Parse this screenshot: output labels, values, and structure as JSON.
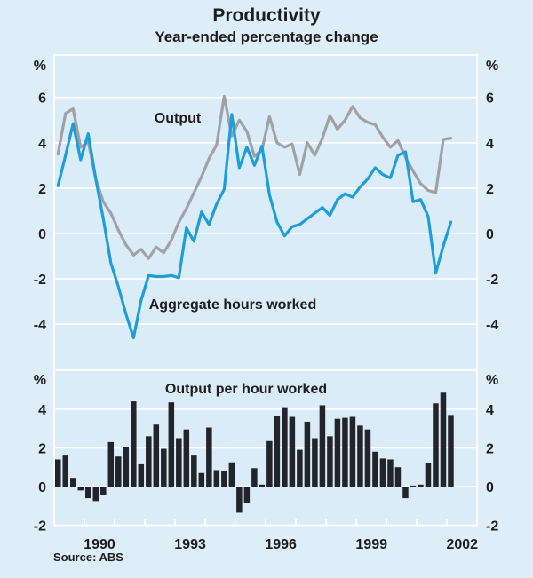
{
  "title": "Productivity",
  "subtitle": "Year-ended percentage change",
  "source_note": "Source: ABS",
  "colors": {
    "background": "#ddeef9",
    "panel_background": "#d9ecf8",
    "grid": "#ffffff",
    "text": "#1d1d1d",
    "output_line": "#9fa1a4",
    "hours_line": "#1e9ed9",
    "bar": "#21242a"
  },
  "x_axis": {
    "start_year": 1989,
    "end_year": 2003,
    "tick_years": [
      1990,
      1991,
      1992,
      1993,
      1994,
      1995,
      1996,
      1997,
      1998,
      1999,
      2000,
      2001,
      2002
    ],
    "label_years": [
      "1990",
      "1993",
      "1996",
      "1999",
      "2002"
    ],
    "frequency": "quarterly",
    "first_quarter": "1989Q1",
    "last_quarter": "2002Q1"
  },
  "chart_data": [
    {
      "type": "line",
      "panel": "top",
      "unit": "%",
      "yticks": [
        6,
        4,
        2,
        0,
        -2,
        -4
      ],
      "ylim": [
        -6,
        7.9
      ],
      "grid": true,
      "series": [
        {
          "name": "Output",
          "color_key": "output_line",
          "values": [
            3.5,
            5.3,
            5.5,
            3.8,
            4.05,
            2.4,
            1.4,
            0.9,
            0.15,
            -0.5,
            -0.95,
            -0.7,
            -1.1,
            -0.6,
            -0.85,
            -0.3,
            0.5,
            1.1,
            1.8,
            2.5,
            3.3,
            3.9,
            6.05,
            4.3,
            5.0,
            4.5,
            3.4,
            3.7,
            5.15,
            4.0,
            3.8,
            3.95,
            2.6,
            4.0,
            3.45,
            4.2,
            5.2,
            4.6,
            5.0,
            5.6,
            5.1,
            4.9,
            4.8,
            4.25,
            3.8,
            4.1,
            3.35,
            2.75,
            2.2,
            1.9,
            1.8,
            4.15,
            4.2
          ]
        },
        {
          "name": "Aggregate hours worked",
          "color_key": "hours_line",
          "values": [
            2.1,
            3.45,
            4.85,
            3.25,
            4.4,
            2.4,
            0.65,
            -1.3,
            -2.35,
            -3.55,
            -4.6,
            -2.95,
            -1.85,
            -1.9,
            -1.9,
            -1.85,
            -1.95,
            0.25,
            -0.35,
            0.95,
            0.4,
            1.3,
            1.95,
            5.25,
            2.9,
            3.8,
            3.0,
            3.85,
            1.7,
            0.5,
            -0.1,
            0.3,
            0.4,
            0.65,
            0.9,
            1.15,
            0.8,
            1.5,
            1.75,
            1.6,
            2.05,
            2.4,
            2.9,
            2.6,
            2.45,
            3.45,
            3.6,
            1.4,
            1.5,
            0.75,
            -1.75,
            -0.55,
            0.5
          ]
        }
      ]
    },
    {
      "type": "bar",
      "panel": "bottom",
      "unit": "%",
      "yticks": [
        4,
        2,
        0,
        -2
      ],
      "ylim": [
        -2,
        6
      ],
      "grid": true,
      "series": [
        {
          "name": "Output per hour worked",
          "color_key": "bar",
          "values": [
            1.4,
            1.6,
            0.45,
            -0.2,
            -0.6,
            -0.75,
            -0.45,
            2.3,
            1.55,
            2.05,
            4.4,
            1.15,
            2.6,
            3.2,
            1.95,
            4.35,
            2.5,
            2.95,
            1.6,
            0.7,
            3.05,
            0.85,
            0.8,
            1.25,
            -1.35,
            -0.85,
            0.95,
            0.1,
            2.35,
            3.65,
            4.1,
            3.6,
            1.9,
            3.35,
            2.5,
            4.2,
            2.6,
            3.5,
            3.55,
            3.6,
            3.15,
            2.95,
            1.8,
            1.45,
            1.4,
            1.0,
            -0.6,
            0.05,
            0.1,
            1.2,
            4.3,
            4.85,
            3.7
          ]
        }
      ]
    }
  ]
}
